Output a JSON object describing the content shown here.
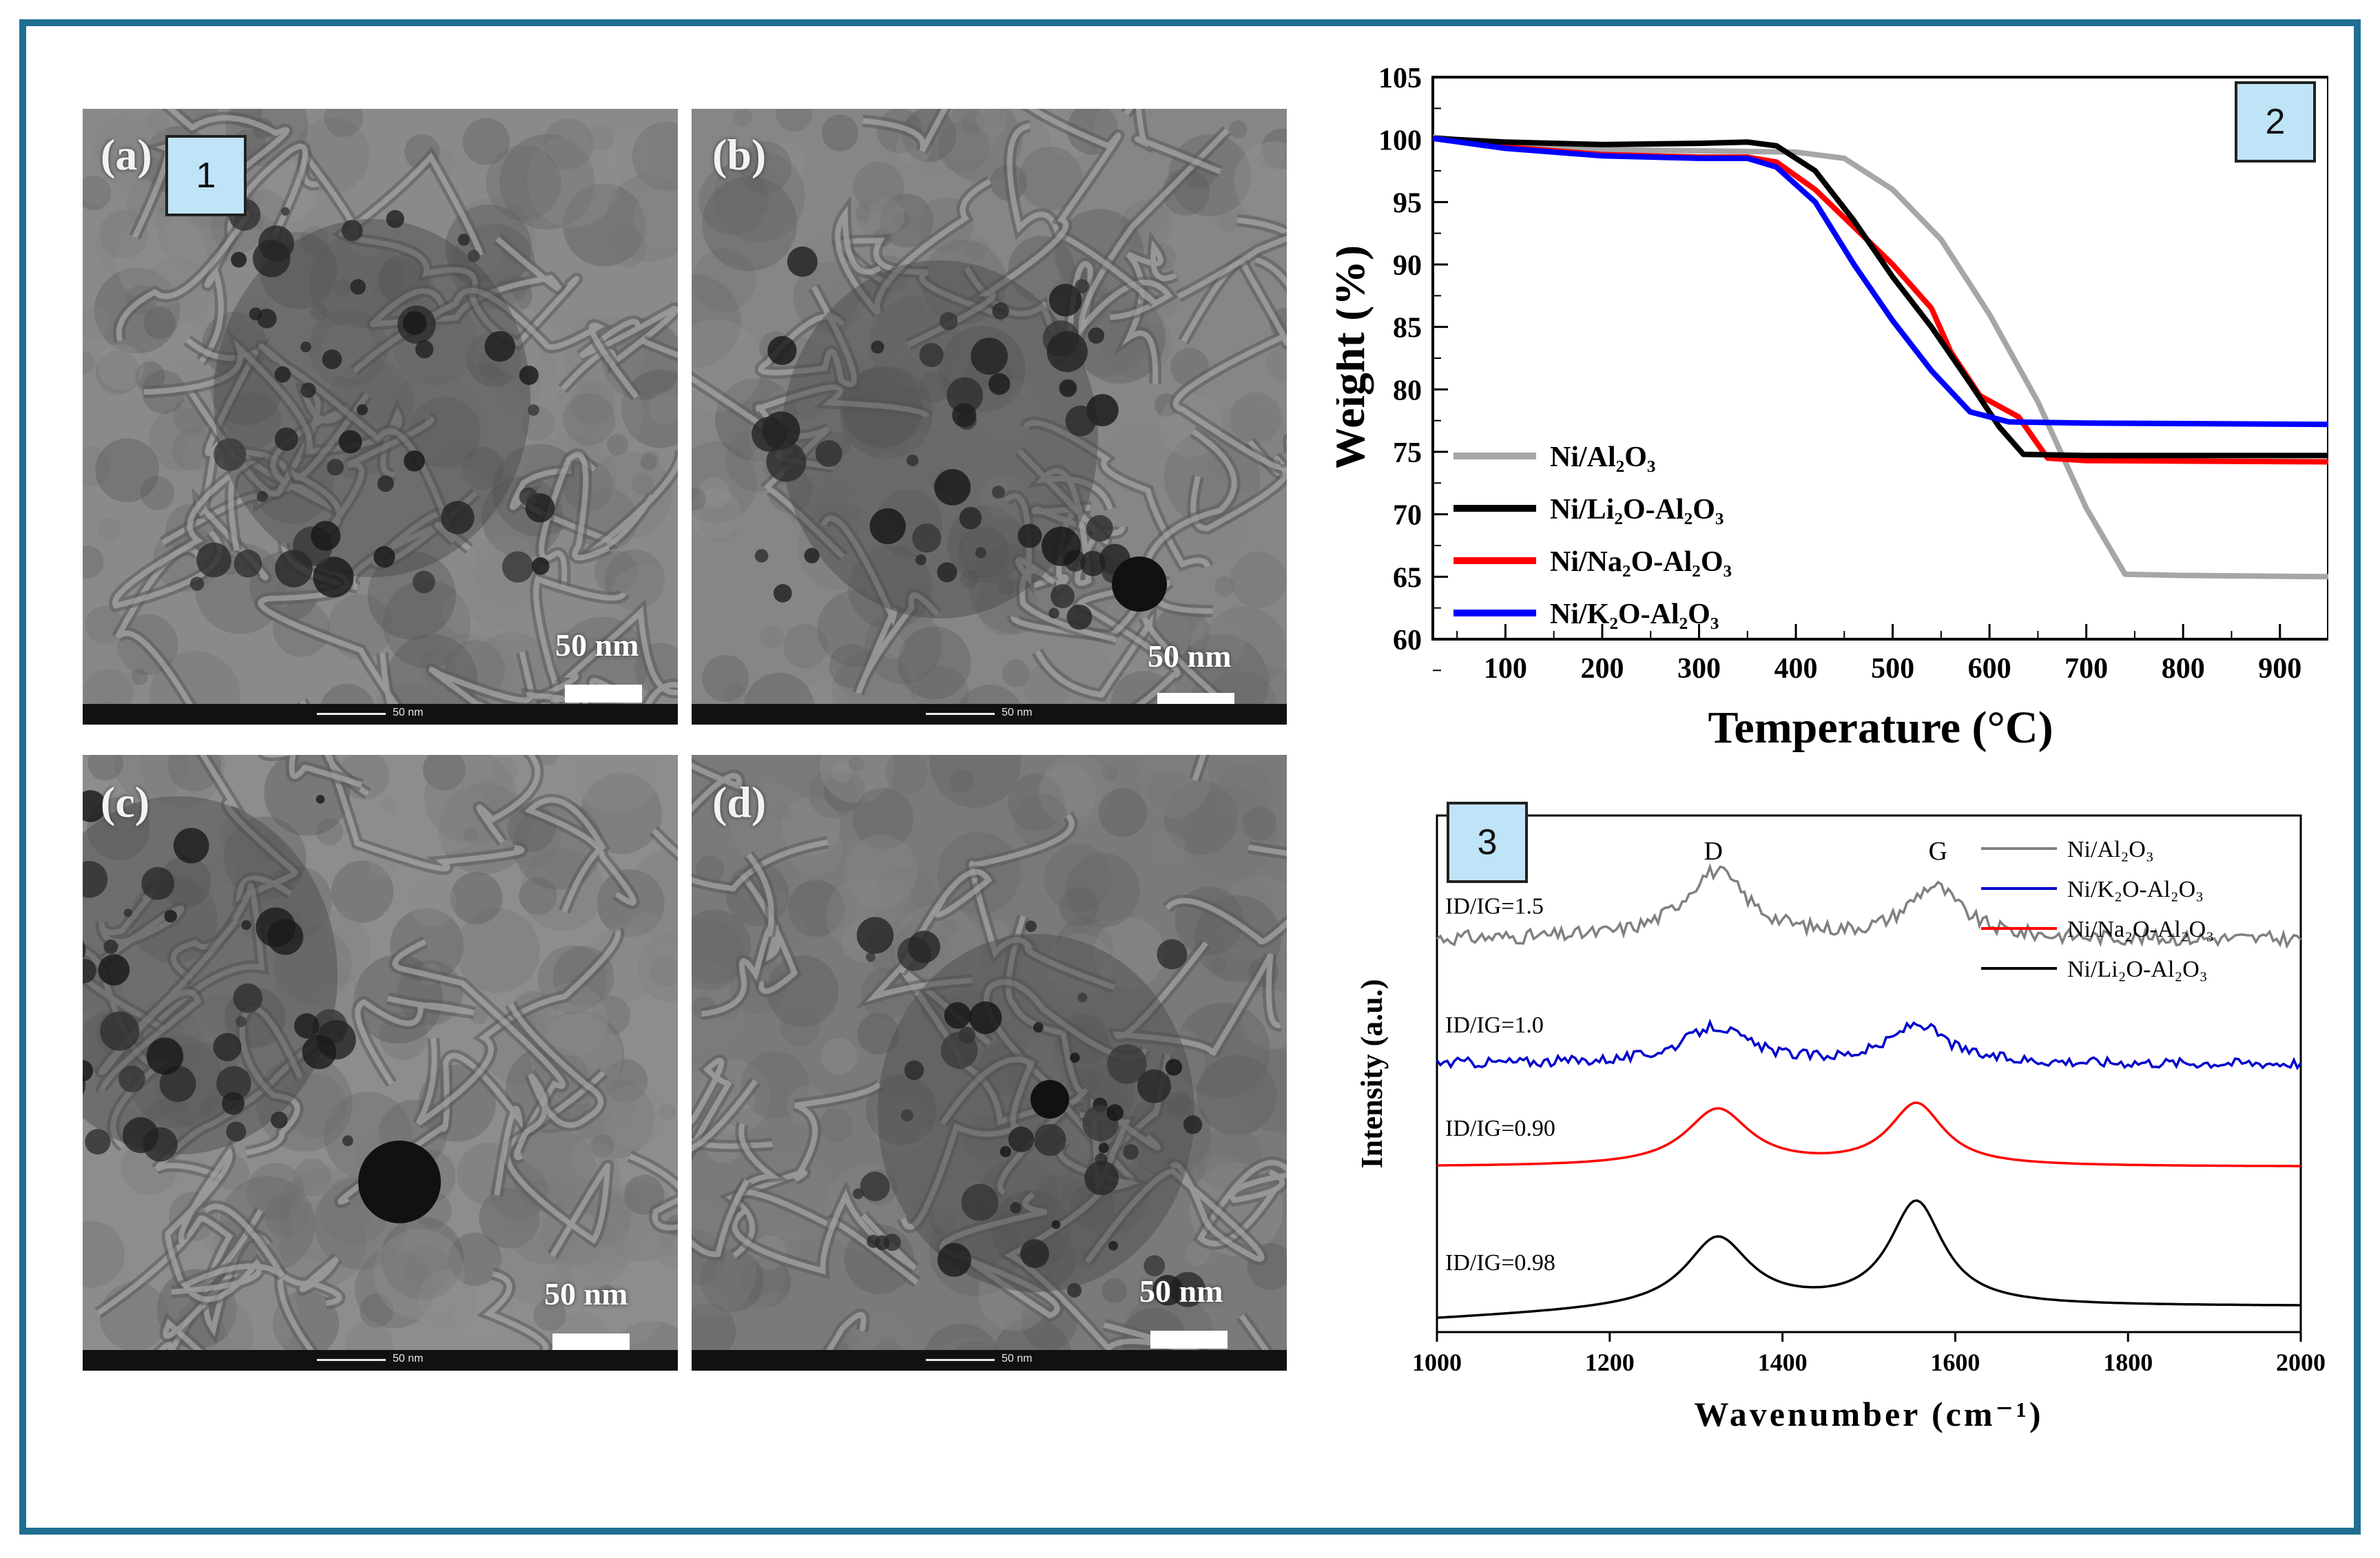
{
  "tem_panels": [
    {
      "label": "(a)",
      "scale": "50 nm",
      "mini_scale": "50 nm"
    },
    {
      "label": "(b)",
      "scale": "50 nm",
      "mini_scale": "50 nm"
    },
    {
      "label": "(c)",
      "scale": "50 nm",
      "mini_scale": "50 nm"
    },
    {
      "label": "(d)",
      "scale": "50 nm",
      "mini_scale": "50 nm"
    }
  ],
  "panel_numbers": [
    "1",
    "2",
    "3"
  ],
  "chart_data": [
    {
      "type": "line",
      "xlabel": "Temperature (°C)",
      "ylabel": "Weight (%)",
      "xlim": [
        25,
        950
      ],
      "ylim": [
        60,
        105
      ],
      "xticks": [
        100,
        200,
        300,
        400,
        500,
        600,
        700,
        800,
        900
      ],
      "yticks": [
        60,
        65,
        70,
        75,
        80,
        85,
        90,
        95,
        100,
        105
      ],
      "legend_position": "bottom-left",
      "grid": false,
      "series": [
        {
          "name": "Ni/Al₂O₃",
          "color": "#a6a6a6",
          "x": [
            25,
            100,
            200,
            300,
            400,
            450,
            500,
            550,
            600,
            650,
            700,
            740,
            800,
            950
          ],
          "y": [
            100.2,
            99.6,
            99.2,
            99.1,
            99.0,
            98.5,
            96.0,
            92.0,
            86.0,
            79.0,
            70.5,
            65.2,
            65.1,
            65.0
          ]
        },
        {
          "name": "Ni/Li₂O-Al₂O₃",
          "color": "#000000",
          "x": [
            25,
            100,
            200,
            300,
            350,
            380,
            420,
            460,
            500,
            540,
            580,
            610,
            635,
            700,
            950
          ],
          "y": [
            100.1,
            99.8,
            99.6,
            99.7,
            99.8,
            99.5,
            97.5,
            93.5,
            89.0,
            85.0,
            80.5,
            77.0,
            74.8,
            74.7,
            74.7
          ]
        },
        {
          "name": "Ni/Na₂O-Al₂O₃",
          "color": "#ff0000",
          "x": [
            25,
            100,
            200,
            300,
            350,
            380,
            420,
            460,
            500,
            540,
            560,
            590,
            630,
            660,
            700,
            950
          ],
          "y": [
            100.1,
            99.4,
            98.8,
            98.6,
            98.6,
            98.2,
            96.0,
            93.0,
            90.0,
            86.5,
            83.0,
            79.5,
            77.8,
            74.5,
            74.3,
            74.2
          ]
        },
        {
          "name": "Ni/K₂O-Al₂O₃",
          "color": "#0000ff",
          "x": [
            25,
            100,
            200,
            300,
            350,
            380,
            420,
            460,
            500,
            540,
            580,
            620,
            700,
            950
          ],
          "y": [
            100.1,
            99.3,
            98.7,
            98.5,
            98.5,
            97.8,
            95.0,
            90.0,
            85.5,
            81.5,
            78.2,
            77.4,
            77.3,
            77.2
          ]
        }
      ]
    },
    {
      "type": "line",
      "xlabel": "Wavenumber (cm⁻¹)",
      "ylabel": "Intensity (a.u.)",
      "xlim": [
        1000,
        2000
      ],
      "xticks": [
        1000,
        1200,
        1400,
        1600,
        1800,
        2000
      ],
      "legend_position": "top-right",
      "grid": false,
      "peak_labels": [
        {
          "text": "D",
          "x": 1320
        },
        {
          "text": "G",
          "x": 1580
        }
      ],
      "ratio_labels": [
        "ID/IG=1.5",
        "ID/IG=1.0",
        "ID/IG=0.90",
        "ID/IG=0.98"
      ],
      "series": [
        {
          "name": "Ni/Al₂O₃",
          "color": "#808080",
          "baseline": 0.76,
          "d_peak": 1322,
          "d_height": 0.13,
          "g_peak": 1575,
          "g_height": 0.1,
          "noise": 0.014
        },
        {
          "name": "Ni/K₂O-Al₂O₃",
          "color": "#0000cc",
          "baseline": 0.52,
          "d_peak": 1322,
          "d_height": 0.07,
          "g_peak": 1557,
          "g_height": 0.075,
          "noise": 0.01
        },
        {
          "name": "Ni/Na₂O-Al₂O₃",
          "color": "#ff0000",
          "baseline": 0.32,
          "d_peak": 1325,
          "d_height": 0.11,
          "g_peak": 1555,
          "g_height": 0.12,
          "noise": 0
        },
        {
          "name": "Ni/Li₂O-Al₂O₃",
          "color": "#000000",
          "baseline": 0.05,
          "d_peak": 1325,
          "d_height": 0.13,
          "g_peak": 1555,
          "g_height": 0.2,
          "noise": 0
        }
      ]
    }
  ]
}
